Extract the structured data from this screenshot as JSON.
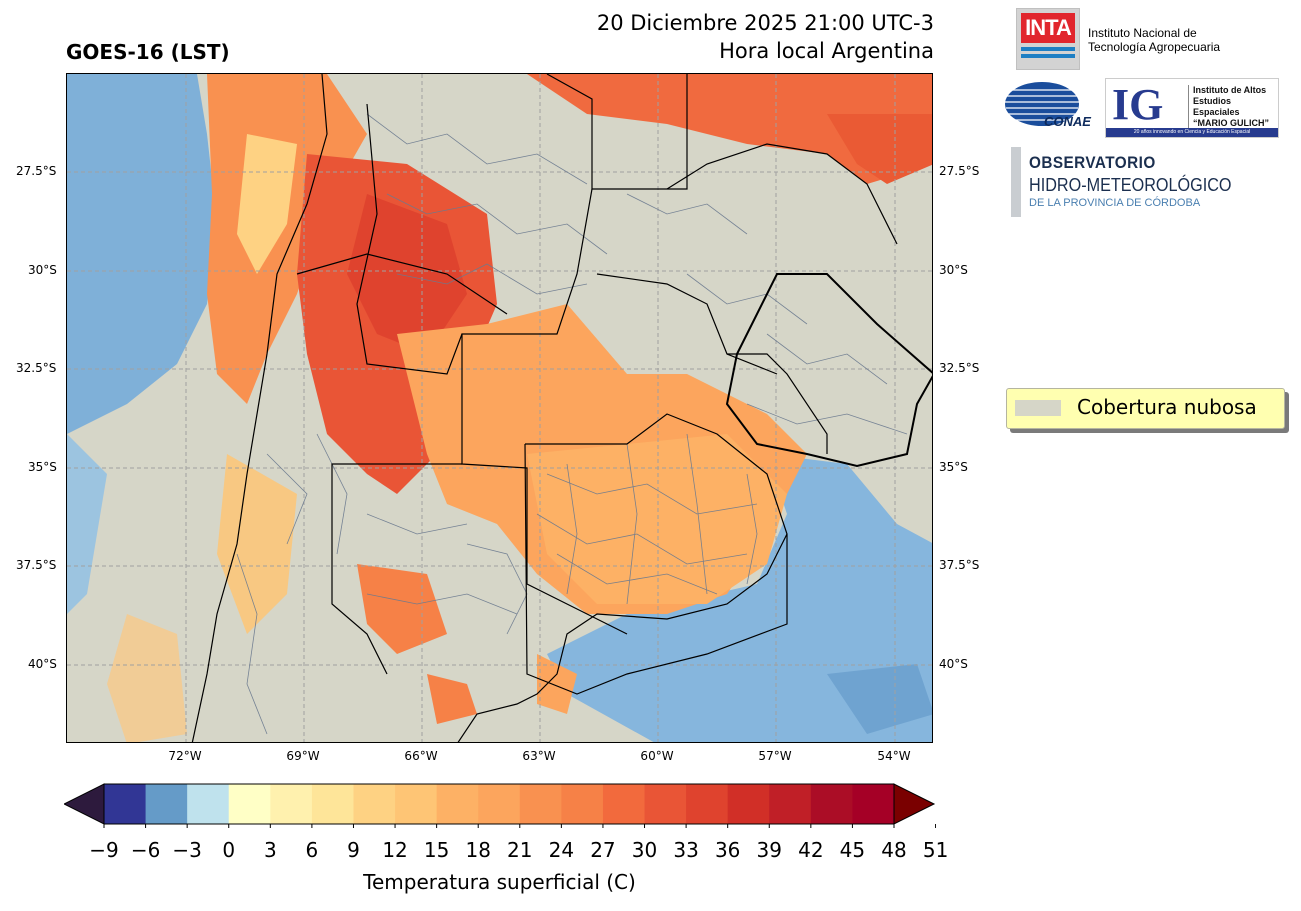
{
  "header": {
    "product": "GOES-16 (LST)",
    "datetime": "20 Diciembre 2025 21:00 UTC-3",
    "timezone": "Hora local Argentina"
  },
  "logos": {
    "inta": {
      "word": "INTA",
      "line1": "Instituto Nacional de",
      "line2": "Tecnología Agropecuaria"
    },
    "conae": {
      "word": "CONAE"
    },
    "ig": {
      "letters": "IG",
      "line1": "Instituto de Altos",
      "line2": "Estudios Espaciales",
      "line3": "“MARIO GULICH”",
      "footer": "20 años innovando en Ciencia y Educación Espacial"
    },
    "observatorio": {
      "line1": "OBSERVATORIO",
      "line2": "HIDRO-METEOROLÓGICO",
      "line3": "DE LA PROVINCIA DE CÓRDOBA"
    }
  },
  "map": {
    "lat_labels": [
      "27.5°S",
      "30°S",
      "32.5°S",
      "35°S",
      "37.5°S",
      "40°S"
    ],
    "lon_labels": [
      "72°W",
      "69°W",
      "66°W",
      "63°W",
      "60°W",
      "57°W",
      "54°W"
    ],
    "colors": {
      "cloud": "#d6d6c8",
      "border": "#000000",
      "districts": "#6b7a8f",
      "grid": "#a0a0a0"
    }
  },
  "legend": {
    "cloud_label": "Cobertura nubosa",
    "cloud_color": "#d6d6c8"
  },
  "colorbar": {
    "label": "Temperatura superficial (C)",
    "ticks": [
      "−9",
      "−6",
      "−3",
      "0",
      "3",
      "6",
      "9",
      "12",
      "15",
      "18",
      "21",
      "24",
      "27",
      "30",
      "33",
      "36",
      "39",
      "42",
      "45",
      "48",
      "51"
    ],
    "under_color": "#2d1a3d",
    "over_color": "#7a0000",
    "colors": [
      "#313695",
      "#659bc8",
      "#bfe2ed",
      "#ffffc6",
      "#fff1ae",
      "#fee599",
      "#fed283",
      "#fec575",
      "#fdb165",
      "#fca55d",
      "#f99150",
      "#f68147",
      "#f26a3d",
      "#e95536",
      "#df432e",
      "#d12f27",
      "#c01f27",
      "#ab0d26",
      "#a50026"
    ]
  }
}
